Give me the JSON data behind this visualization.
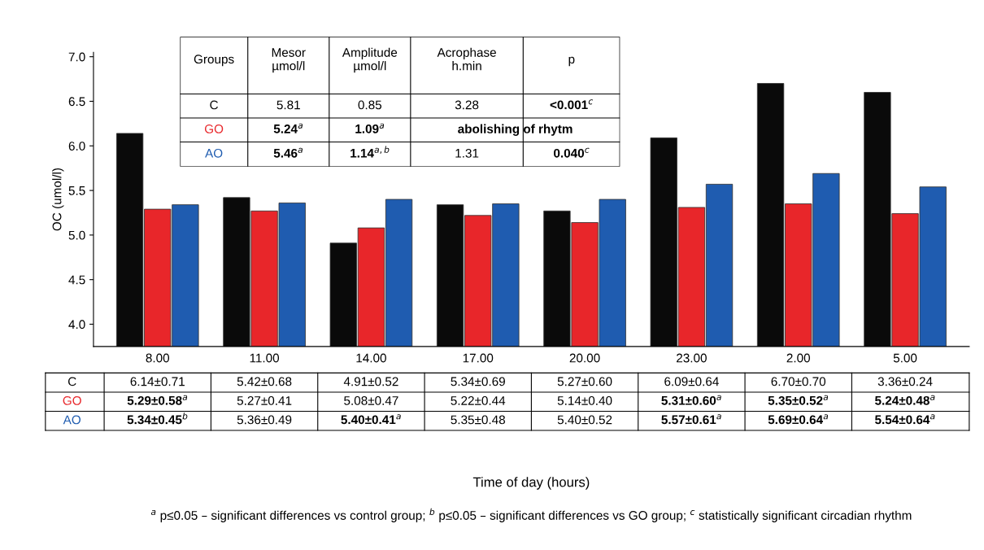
{
  "chart_data": [
    {
      "type": "bar",
      "xlabel": "Time of day (hours)",
      "ylabel": "OC (umol/l)",
      "categories": [
        "8.00",
        "11.00",
        "14.00",
        "17.00",
        "20.00",
        "23.00",
        "2.00",
        "5.00"
      ],
      "ylim": [
        3.75,
        7.05
      ],
      "yticks": [
        {
          "value": 4,
          "label": "4.0"
        },
        {
          "value": 4.5,
          "label": "4.5"
        },
        {
          "value": 5,
          "label": "5.0"
        },
        {
          "value": 5.5,
          "label": "5.5"
        },
        {
          "value": 6,
          "label": "6.0"
        },
        {
          "value": 6.5,
          "label": "6.5"
        },
        {
          "value": 7,
          "label": "7.0"
        }
      ],
      "grid": false,
      "legend": false,
      "series": [
        {
          "name": "C",
          "color": "#0a0a0a",
          "values": [
            6.14,
            5.42,
            4.91,
            5.34,
            5.27,
            6.09,
            6.7,
            6.6
          ],
          "value_labels": [
            "6.14±0.71",
            "5.42±0.68",
            "4.91±0.52",
            "5.34±0.69",
            "5.27±0.60",
            "6.09±0.64",
            "6.70±0.70",
            null
          ]
        },
        {
          "name": "GO",
          "color": "#e8262a",
          "values": [
            5.29,
            5.27,
            5.08,
            5.22,
            5.14,
            5.31,
            5.35,
            5.24
          ],
          "value_labels": [
            "5.29±0.58$^{a}$",
            "5.27±0.41",
            "5.08±0.47",
            "5.22±0.44",
            "5.14±0.40",
            "5.31±0.60$^{a}$",
            "5.35±0.52$^{a}$",
            "5.24±0.48$^{a}$"
          ]
        },
        {
          "name": "AO",
          "color": "#1f5cb0",
          "values": [
            5.34,
            5.36,
            5.4,
            5.35,
            5.4,
            5.57,
            5.69,
            5.54
          ],
          "value_labels": [
            "5.34±0.45$^{b}$",
            "5.36±0.49",
            "5.40±0.41$^{a}$",
            "5.35±0.48",
            "5.40±0.52",
            "5.57±0.61$^{a}$",
            "5.69±0.64$^{a}$",
            "5.54±0.64$^{a}$"
          ]
        }
      ],
      "annotations": [
        "$^{a}$ p≤0.05 – significant differences vs control group; $^{b}$ p≤0.05 – significant differences vs GO group; $^{c}$ statistically significant circadian rhythm",
        "3.36±0.24"
      ]
    },
    {
      "type": "other",
      "annotations": [
        "Groups",
        "Mesor\nµmol/l",
        "Amplitude\nµmol/l",
        "Acrophase\nh.min",
        "p",
        "C",
        "5.81",
        "0.85",
        "3.28",
        "<0.001$^{c}$",
        "GO",
        "5.24$^{a}$",
        "1.09$^{a}$",
        "abolishing of rhytm",
        "AO",
        "5.46$^{a}$",
        "1.14$^{a,b}$",
        "1.31",
        "0.040$^{c}$"
      ]
    }
  ]
}
